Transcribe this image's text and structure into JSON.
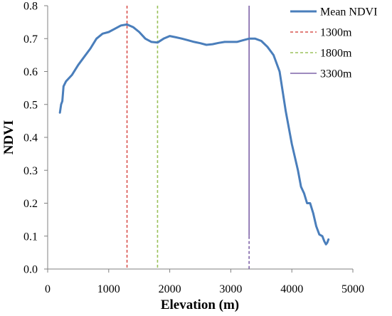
{
  "chart_data": {
    "type": "line",
    "xlabel": "Elevation (m)",
    "ylabel": "NDVI",
    "xlim": [
      0,
      5000
    ],
    "ylim": [
      0,
      0.8
    ],
    "x_ticks": [
      "0",
      "1000",
      "2000",
      "3000",
      "4000",
      "5000"
    ],
    "y_ticks": [
      "0.0",
      "0.1",
      "0.2",
      "0.3",
      "0.4",
      "0.5",
      "0.6",
      "0.7",
      "0.8"
    ],
    "grid": false,
    "legend_position": "top-right",
    "series": [
      {
        "name": "Mean NDVI",
        "color": "#4a7ebb",
        "x": [
          200,
          220,
          240,
          260,
          300,
          400,
          500,
          600,
          700,
          800,
          900,
          1000,
          1100,
          1200,
          1300,
          1400,
          1500,
          1600,
          1700,
          1800,
          1900,
          2000,
          2100,
          2200,
          2300,
          2400,
          2500,
          2600,
          2700,
          2800,
          2900,
          3000,
          3100,
          3200,
          3300,
          3400,
          3500,
          3600,
          3700,
          3800,
          3900,
          4000,
          4100,
          4150,
          4200,
          4250,
          4300,
          4350,
          4400,
          4450,
          4500,
          4530,
          4560,
          4580,
          4600
        ],
        "y": [
          0.475,
          0.5,
          0.51,
          0.555,
          0.57,
          0.59,
          0.62,
          0.645,
          0.67,
          0.7,
          0.715,
          0.72,
          0.73,
          0.74,
          0.743,
          0.735,
          0.72,
          0.7,
          0.69,
          0.688,
          0.7,
          0.708,
          0.704,
          0.7,
          0.695,
          0.69,
          0.686,
          0.681,
          0.683,
          0.687,
          0.69,
          0.69,
          0.69,
          0.695,
          0.7,
          0.7,
          0.693,
          0.675,
          0.65,
          0.6,
          0.48,
          0.38,
          0.3,
          0.25,
          0.23,
          0.2,
          0.2,
          0.17,
          0.13,
          0.105,
          0.1,
          0.085,
          0.075,
          0.08,
          0.09
        ]
      },
      {
        "name": "1300m",
        "color": "#d9534f",
        "dash": "dashed",
        "x": 1300
      },
      {
        "name": "1800m",
        "color": "#9bc25b",
        "dash": "dashed",
        "x": 1800
      },
      {
        "name": "3300m",
        "color": "#7f63a8",
        "dash": "mixed",
        "x": 3300
      }
    ]
  }
}
